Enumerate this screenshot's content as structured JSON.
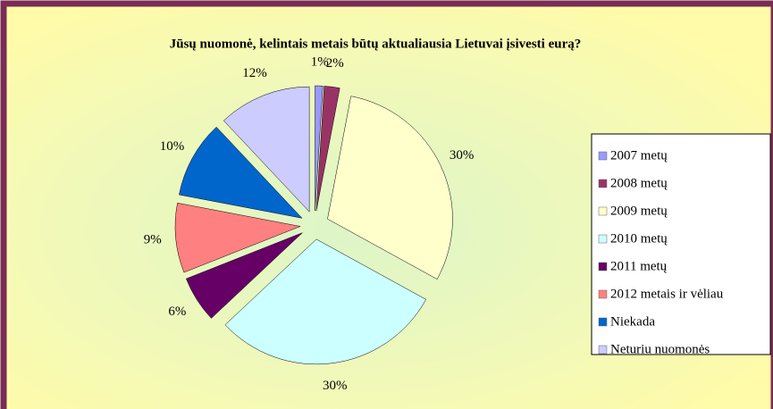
{
  "chart_data": {
    "type": "pie",
    "title": "Jūsų nuomonė, kelintais metais būtų aktualiausia Lietuvai įsivesti eurą?",
    "categories": [
      "2007 metų",
      "2008 metų",
      "2009 metų",
      "2010 metų",
      "2011 metų",
      "2012 metais ir vėliau",
      "Niekada",
      "Neturiu nuomonės"
    ],
    "values": [
      1,
      2,
      30,
      30,
      6,
      9,
      10,
      12
    ],
    "value_labels": [
      "1%",
      "2%",
      "30%",
      "30%",
      "6%",
      "9%",
      "10%",
      "12%"
    ],
    "colors": [
      "#9999ff",
      "#993366",
      "#ffffcc",
      "#ccffff",
      "#660066",
      "#ff8080",
      "#0066cc",
      "#ccccff"
    ],
    "legend": "right"
  }
}
